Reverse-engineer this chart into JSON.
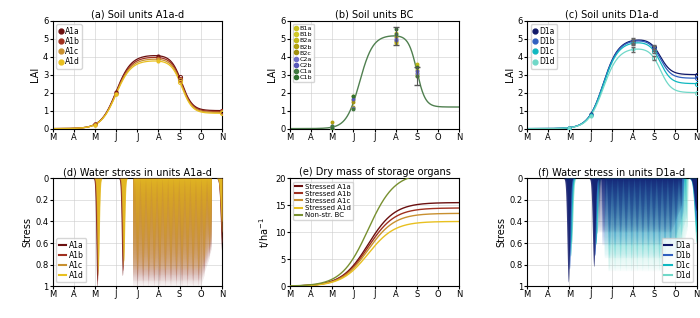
{
  "title_a": "(a) Soil units A1a-d",
  "title_b": "(b) Soil units BC",
  "title_c": "(c) Soil units D1a-d",
  "title_d": "(d) Water stress in units A1a-d",
  "title_e": "(e) Dry mass of storage organs",
  "title_f": "(f) Water stress in units D1a-d",
  "months_labels": [
    "M",
    "A",
    "M",
    "J",
    "J",
    "A",
    "S",
    "O",
    "N"
  ],
  "colors_A": [
    "#6b1010",
    "#a03020",
    "#c89030",
    "#e8c020"
  ],
  "colors_BC": [
    "#c8c020",
    "#d0c828",
    "#c0b818",
    "#b0a010",
    "#a09010",
    "#7070c8",
    "#5858b8",
    "#407840",
    "#307030"
  ],
  "colors_D": [
    "#101868",
    "#3060c0",
    "#10b8c0",
    "#70d8c8"
  ],
  "color_nonstr": "#789030",
  "lai_ylim": [
    0,
    6
  ],
  "stress_ylim": [
    0,
    1
  ],
  "drymass_ylim": [
    0,
    20
  ],
  "peaks_A": [
    4.1,
    4.0,
    3.9,
    3.8
  ],
  "drops_A": [
    1.0,
    0.95,
    0.9,
    0.85
  ],
  "peaks_D": [
    5.0,
    4.95,
    4.85,
    4.5
  ],
  "drops_D": [
    3.0,
    2.8,
    2.5,
    2.0
  ],
  "labels_A": [
    "A1a",
    "A1b",
    "A1c",
    "A1d"
  ],
  "labels_BC": [
    "B1a",
    "B1b",
    "B2a",
    "B2b",
    "B2c",
    "C2a",
    "C2b",
    "C1a",
    "C1b"
  ],
  "labels_D": [
    "D1a",
    "D1b",
    "D1c",
    "D1d"
  ],
  "labels_stress_e": [
    "Stressed A1a",
    "Stressed A1b",
    "Stressed A1c",
    "Stressed A1d",
    "Non-str. BC"
  ],
  "drymass_finals_stressed": [
    15.5,
    14.5,
    13.5,
    12.0
  ],
  "drymass_final_nonstr": 21.0
}
